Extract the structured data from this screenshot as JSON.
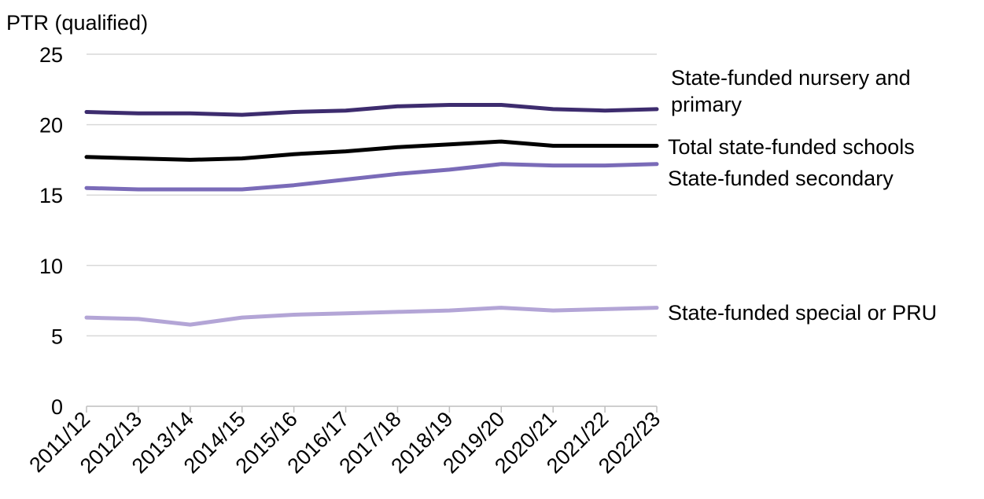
{
  "chart_data": {
    "type": "line",
    "ylabel": "PTR (qualified)",
    "xlabel": "",
    "ylim": [
      0,
      25
    ],
    "yticks": [
      0,
      5,
      10,
      15,
      20,
      25
    ],
    "grid": true,
    "legend": "inline labels at right end of lines",
    "categories": [
      "2011/12",
      "2012/13",
      "2013/14",
      "2014/15",
      "2015/16",
      "2016/17",
      "2017/18",
      "2018/19",
      "2019/20",
      "2020/21",
      "2021/22",
      "2022/23"
    ],
    "series": [
      {
        "name": "State-funded nursery and primary",
        "label_lines": [
          "State-funded nursery and",
          "primary"
        ],
        "color": "#3d2c6e",
        "values": [
          20.9,
          20.8,
          20.8,
          20.7,
          20.9,
          21.0,
          21.3,
          21.4,
          21.4,
          21.1,
          21.0,
          21.1
        ]
      },
      {
        "name": "Total state-funded schools",
        "label_lines": [
          "Total state-funded schools"
        ],
        "color": "#000000",
        "values": [
          17.7,
          17.6,
          17.5,
          17.6,
          17.9,
          18.1,
          18.4,
          18.6,
          18.8,
          18.5,
          18.5,
          18.5
        ]
      },
      {
        "name": "State-funded secondary",
        "label_lines": [
          "State-funded secondary"
        ],
        "color": "#7a6bb8",
        "values": [
          15.5,
          15.4,
          15.4,
          15.4,
          15.7,
          16.1,
          16.5,
          16.8,
          17.2,
          17.1,
          17.1,
          17.2
        ]
      },
      {
        "name": "State-funded special or PRU",
        "label_lines": [
          "State-funded special or PRU"
        ],
        "color": "#b3a5d6",
        "values": [
          6.3,
          6.2,
          5.8,
          6.3,
          6.5,
          6.6,
          6.7,
          6.8,
          7.0,
          6.8,
          6.9,
          7.0
        ]
      }
    ]
  }
}
